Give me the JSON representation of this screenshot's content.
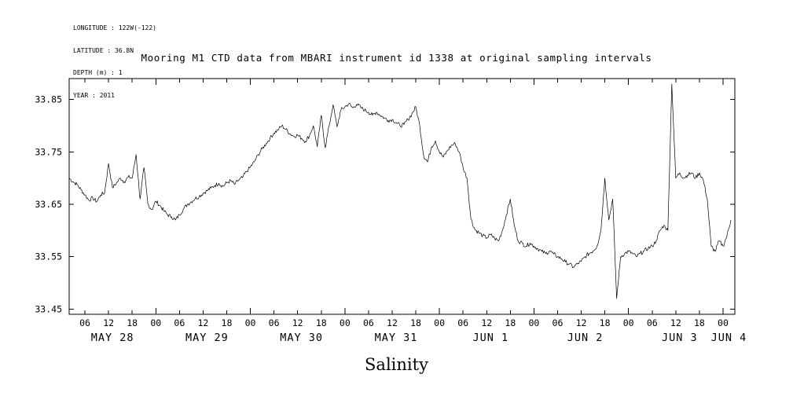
{
  "header": {
    "metadata_lines": [
      "LONGITUDE : 122W(-122)",
      "LATITUDE : 36.8N",
      "DEPTH (m) : 1",
      "YEAR : 2011"
    ]
  },
  "title": "Mooring M1 CTD data from MBARI instrument id 1338 at original sampling intervals",
  "xlabel": "Salinity",
  "chart_data": {
    "type": "line",
    "title": "Mooring M1 CTD data from MBARI instrument id 1338 at original sampling intervals",
    "xlabel": "Salinity",
    "ylabel": "",
    "grid": false,
    "legend": "none",
    "line_color": "#000000",
    "ylim": [
      33.44,
      33.89
    ],
    "y_ticks": [
      33.45,
      33.55,
      33.65,
      33.75,
      33.85
    ],
    "x_unit": "hours since 2011-05-28 00:00",
    "x_range_hours": [
      2,
      171
    ],
    "x_tick_start_hour": 6,
    "x_tick_end_hour": 168,
    "x_tick_hours_interval": 6,
    "x_tick_labels_cycle": [
      "06",
      "12",
      "18",
      "00"
    ],
    "x_date_labels": [
      {
        "label": "MAY 28",
        "hour": 13
      },
      {
        "label": "MAY 29",
        "hour": 37
      },
      {
        "label": "MAY 30",
        "hour": 61
      },
      {
        "label": "MAY 31",
        "hour": 85
      },
      {
        "label": "JUN 1",
        "hour": 109
      },
      {
        "label": "JUN 2",
        "hour": 133
      },
      {
        "label": "JUN 3",
        "hour": 157
      },
      {
        "label": "JUN 4",
        "hour": 169.5
      }
    ],
    "start_hour": 2,
    "step_hours": 1,
    "noise_amplitude": 0.004,
    "values": [
      33.7,
      33.693,
      33.688,
      33.678,
      33.668,
      33.658,
      33.662,
      33.655,
      33.668,
      33.672,
      33.728,
      33.682,
      33.69,
      33.7,
      33.693,
      33.702,
      33.7,
      33.745,
      33.66,
      33.72,
      33.65,
      33.64,
      33.656,
      33.648,
      33.638,
      33.63,
      33.626,
      33.62,
      33.63,
      33.641,
      33.65,
      33.655,
      33.661,
      33.665,
      33.671,
      33.676,
      33.681,
      33.686,
      33.69,
      33.684,
      33.691,
      33.695,
      33.688,
      33.696,
      33.701,
      33.712,
      33.721,
      33.731,
      33.745,
      33.756,
      33.766,
      33.776,
      33.786,
      33.792,
      33.8,
      33.793,
      33.785,
      33.78,
      33.782,
      33.776,
      33.77,
      33.781,
      33.8,
      33.76,
      33.82,
      33.758,
      33.8,
      33.84,
      33.798,
      33.83,
      33.836,
      33.842,
      33.834,
      33.841,
      33.835,
      33.83,
      33.826,
      33.82,
      33.826,
      33.82,
      33.815,
      33.81,
      33.812,
      33.806,
      33.8,
      33.802,
      33.812,
      33.822,
      33.836,
      33.8,
      33.742,
      33.731,
      33.76,
      33.771,
      33.75,
      33.74,
      33.752,
      33.762,
      33.766,
      33.75,
      33.72,
      33.7,
      33.622,
      33.602,
      33.596,
      33.59,
      33.586,
      33.592,
      33.585,
      33.58,
      33.6,
      33.63,
      33.66,
      33.61,
      33.58,
      33.576,
      33.57,
      33.576,
      33.57,
      33.565,
      33.56,
      33.556,
      33.561,
      33.555,
      33.55,
      33.546,
      33.54,
      33.536,
      33.53,
      33.536,
      33.541,
      33.55,
      33.556,
      33.561,
      33.57,
      33.6,
      33.7,
      33.62,
      33.66,
      33.47,
      33.55,
      33.556,
      33.56,
      33.556,
      33.55,
      33.556,
      33.561,
      33.566,
      33.57,
      33.58,
      33.6,
      33.61,
      33.6,
      33.88,
      33.7,
      33.71,
      33.7,
      33.706,
      33.71,
      33.7,
      33.71,
      33.696,
      33.66,
      33.57,
      33.56,
      33.58,
      33.57,
      33.59,
      33.62
    ]
  }
}
